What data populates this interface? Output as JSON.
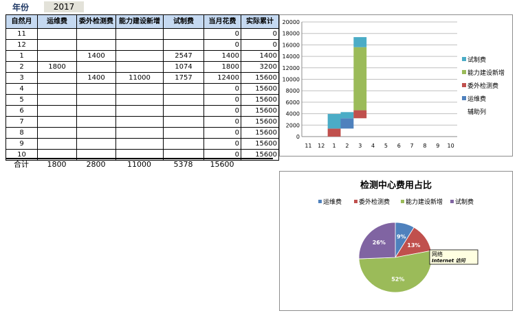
{
  "year": {
    "label": "年份",
    "value": "2017"
  },
  "table": {
    "headers": [
      "自然月",
      "运维费",
      "委外检测费",
      "能力建设新增",
      "试制费",
      "当月花费",
      "实际累计"
    ],
    "rows": [
      [
        "11",
        "",
        "",
        "",
        "",
        "0",
        "0"
      ],
      [
        "12",
        "",
        "",
        "",
        "",
        "0",
        "0"
      ],
      [
        "1",
        "",
        "1400",
        "",
        "2547",
        "1400",
        "1400"
      ],
      [
        "2",
        "1800",
        "",
        "",
        "1074",
        "1800",
        "3200"
      ],
      [
        "3",
        "",
        "1400",
        "11000",
        "1757",
        "12400",
        "15600"
      ],
      [
        "4",
        "",
        "",
        "",
        "",
        "0",
        "15600"
      ],
      [
        "5",
        "",
        "",
        "",
        "",
        "0",
        "15600"
      ],
      [
        "6",
        "",
        "",
        "",
        "",
        "0",
        "15600"
      ],
      [
        "7",
        "",
        "",
        "",
        "",
        "0",
        "15600"
      ],
      [
        "8",
        "",
        "",
        "",
        "",
        "0",
        "15600"
      ],
      [
        "9",
        "",
        "",
        "",
        "",
        "0",
        "15600"
      ],
      [
        "10",
        "",
        "",
        "",
        "",
        "0",
        "15600"
      ]
    ],
    "totals": [
      "合计",
      "1800",
      "2800",
      "11000",
      "5378",
      "15600"
    ]
  },
  "chart_data": [
    {
      "type": "bar",
      "stacked": true,
      "title": "",
      "categories": [
        "11",
        "12",
        "1",
        "2",
        "3",
        "4",
        "5",
        "6",
        "7",
        "8",
        "9",
        "10"
      ],
      "series": [
        {
          "name": "辅助列",
          "color": "none",
          "values": [
            0,
            0,
            0,
            1400,
            3200,
            0,
            0,
            0,
            0,
            0,
            0,
            0
          ]
        },
        {
          "name": "运维费",
          "color": "#4f81bd",
          "values": [
            0,
            0,
            0,
            1800,
            0,
            0,
            0,
            0,
            0,
            0,
            0,
            0
          ]
        },
        {
          "name": "委外检测费",
          "color": "#c0504d",
          "values": [
            0,
            0,
            1400,
            0,
            1400,
            0,
            0,
            0,
            0,
            0,
            0,
            0
          ]
        },
        {
          "name": "能力建设新增",
          "color": "#9bbb59",
          "values": [
            0,
            0,
            0,
            0,
            11000,
            0,
            0,
            0,
            0,
            0,
            0,
            0
          ]
        },
        {
          "name": "试制费",
          "color": "#4bacc6",
          "values": [
            0,
            0,
            2547,
            1074,
            1757,
            0,
            0,
            0,
            0,
            0,
            0,
            0
          ]
        }
      ],
      "ylim": [
        0,
        20000
      ],
      "yticks": [
        0,
        2000,
        4000,
        6000,
        8000,
        10000,
        12000,
        14000,
        16000,
        18000,
        20000
      ],
      "grid": true,
      "legend": "right",
      "legend_order": [
        "试制费",
        "能力建设新增",
        "委外检测费",
        "运维费",
        "辅助列"
      ]
    },
    {
      "type": "pie",
      "title": "检测中心费用占比",
      "legend": "top",
      "slices": [
        {
          "name": "运维费",
          "value": 1800,
          "label": "9%",
          "color": "#4f81bd"
        },
        {
          "name": "委外检测费",
          "value": 2800,
          "label": "13%",
          "color": "#c0504d"
        },
        {
          "name": "能力建设新增",
          "value": 11000,
          "label": "52%",
          "color": "#9bbb59"
        },
        {
          "name": "试制费",
          "value": 5378,
          "label": "26%",
          "color": "#8064a2"
        }
      ],
      "annotation": [
        "网络",
        "Internet 访问"
      ]
    }
  ]
}
